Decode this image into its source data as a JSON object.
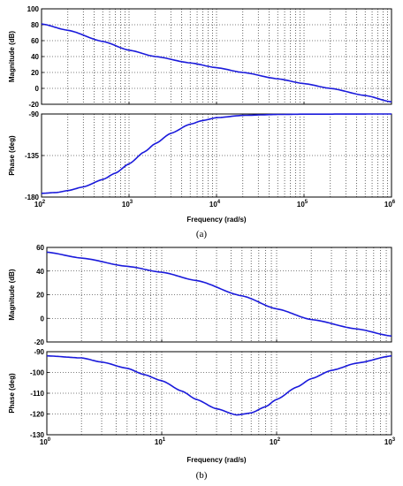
{
  "colors": {
    "curve": "#1a1adb",
    "axes": "#000000",
    "grid": "#000000",
    "background": "#ffffff"
  },
  "panels": [
    {
      "label": "(a)",
      "xlabel": "Frequency  (rad/s)"
    },
    {
      "label": "(b)",
      "xlabel": "Frequency  (rad/s)"
    }
  ],
  "chart_data": [
    {
      "type": "line",
      "panel": "(a)",
      "subplot": "magnitude",
      "title": "",
      "xlabel": "",
      "ylabel": "Magnitude (dB)",
      "xscale": "log",
      "xlim": [
        100,
        1000000
      ],
      "ylim": [
        -20,
        100
      ],
      "yticks": [
        -20,
        0,
        20,
        40,
        60,
        80,
        100
      ],
      "grid": true,
      "x": [
        100,
        200,
        500,
        1000,
        2000,
        5000,
        10000,
        20000,
        50000,
        100000,
        200000,
        500000,
        1000000
      ],
      "series": [
        {
          "values": [
            81,
            73,
            59,
            48,
            40,
            32,
            26,
            20,
            12,
            6,
            0,
            -9,
            -17
          ]
        }
      ]
    },
    {
      "type": "line",
      "panel": "(a)",
      "subplot": "phase",
      "title": "",
      "xlabel": "Frequency  (rad/s)",
      "ylabel": "Phase (deg)",
      "xscale": "log",
      "xlim": [
        100,
        1000000
      ],
      "ylim": [
        -180,
        -90
      ],
      "yticks": [
        -180,
        -135,
        -90
      ],
      "xticks": [
        "10^2",
        "10^3",
        "10^4",
        "10^5",
        "10^6"
      ],
      "grid": true,
      "x": [
        100,
        150,
        200,
        300,
        500,
        700,
        1000,
        1500,
        2000,
        3000,
        5000,
        7000,
        10000,
        20000,
        50000,
        100000,
        1000000
      ],
      "series": [
        {
          "values": [
            -176,
            -175,
            -173,
            -169,
            -161,
            -154,
            -144,
            -131,
            -122,
            -111,
            -101,
            -97,
            -94,
            -91.5,
            -90.5,
            -90.2,
            -90
          ]
        }
      ]
    },
    {
      "type": "line",
      "panel": "(b)",
      "subplot": "magnitude",
      "title": "",
      "xlabel": "",
      "ylabel": "Magnitude (dB)",
      "xscale": "log",
      "xlim": [
        1,
        1000
      ],
      "ylim": [
        -20,
        60
      ],
      "yticks": [
        -20,
        0,
        20,
        40,
        60
      ],
      "grid": true,
      "x": [
        1,
        2,
        5,
        10,
        20,
        50,
        100,
        200,
        500,
        1000
      ],
      "series": [
        {
          "values": [
            56,
            51,
            44,
            39,
            32,
            19,
            8,
            -1,
            -9,
            -15
          ]
        }
      ]
    },
    {
      "type": "line",
      "panel": "(b)",
      "subplot": "phase",
      "title": "",
      "xlabel": "Frequency  (rad/s)",
      "ylabel": "Phase (deg)",
      "xscale": "log",
      "xlim": [
        1,
        1000
      ],
      "ylim": [
        -130,
        -90
      ],
      "yticks": [
        -130,
        -120,
        -110,
        -100,
        -90
      ],
      "xticks": [
        "10^0",
        "10^1",
        "10^2",
        "10^3"
      ],
      "grid": true,
      "x": [
        1,
        2,
        3,
        5,
        7,
        10,
        15,
        20,
        30,
        45,
        60,
        80,
        100,
        150,
        200,
        300,
        500,
        1000
      ],
      "series": [
        {
          "values": [
            -92,
            -93,
            -95,
            -98,
            -101,
            -104,
            -109,
            -113,
            -117.5,
            -120.5,
            -119.5,
            -116.5,
            -113,
            -107,
            -103,
            -99,
            -95.5,
            -92
          ]
        }
      ]
    }
  ]
}
